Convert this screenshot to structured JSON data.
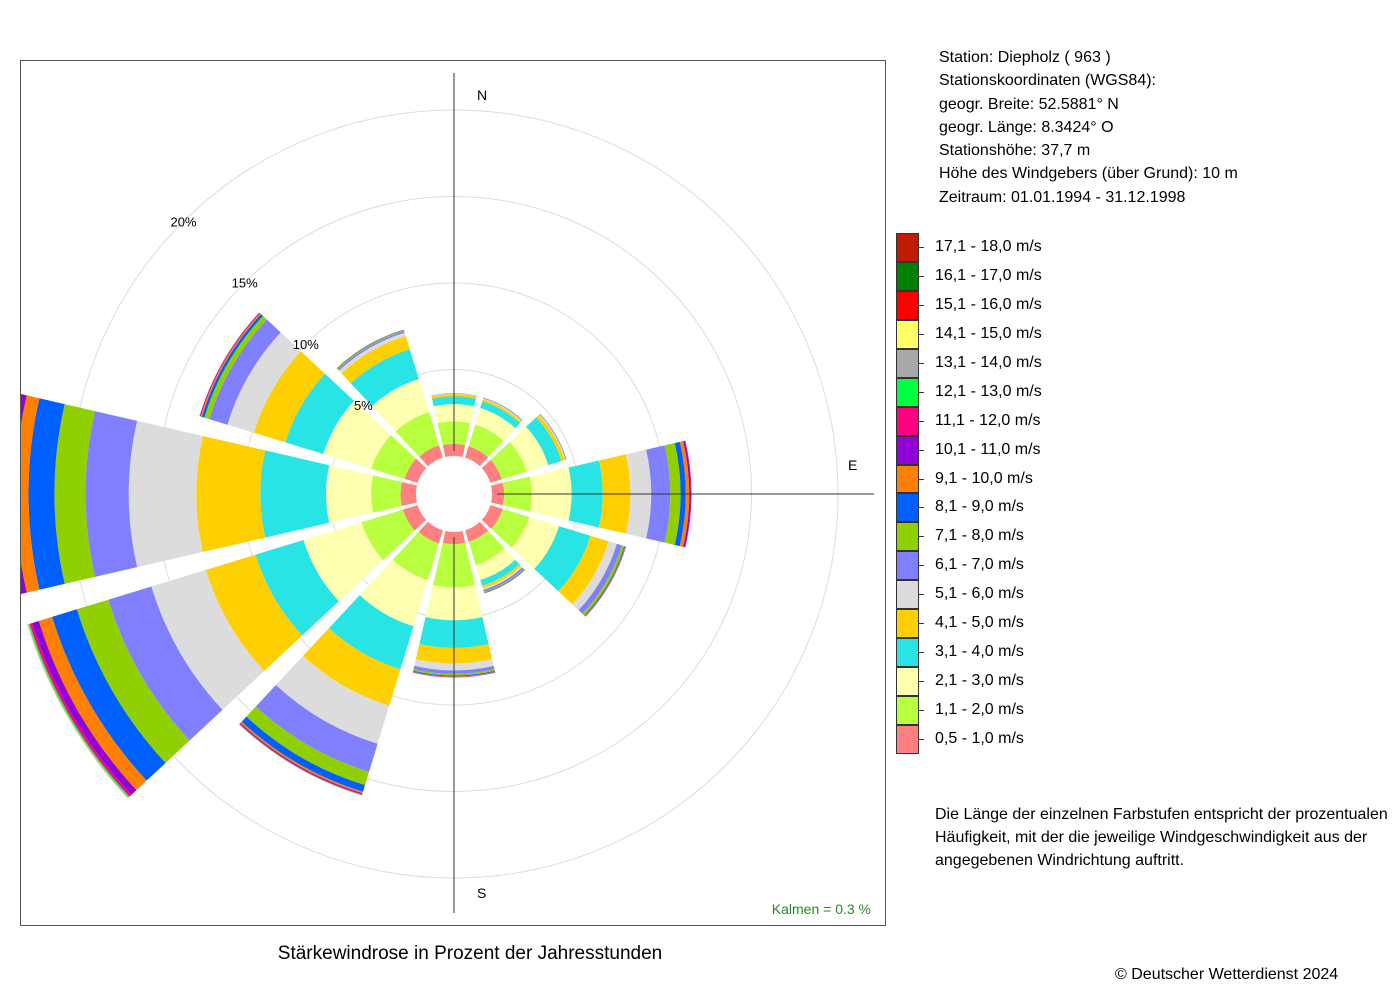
{
  "station_info": {
    "station": "Station:  Diepholz  ( 963 )",
    "coords_heading": "Stationskoordinaten (WGS84):",
    "latitude": "geogr. Breite: 52.5881° N",
    "longitude": "geogr. Länge:   8.3424° O",
    "altitude": "Stationshöhe: 37,7 m",
    "sensor_height": "Höhe des Windgebers (über Grund): 10 m",
    "period": "Zeitraum: 01.01.1994 - 31.12.1998"
  },
  "legend": [
    {
      "label": "17,1 - 18,0 m/s",
      "color": "#c01a00"
    },
    {
      "label": "16,1 - 17,0 m/s",
      "color": "#008000"
    },
    {
      "label": "15,1 - 16,0 m/s",
      "color": "#ff0000"
    },
    {
      "label": "14,1 - 15,0 m/s",
      "color": "#ffff66"
    },
    {
      "label": "13,1 - 14,0 m/s",
      "color": "#a8a8a8"
    },
    {
      "label": "12,1 - 13,0 m/s",
      "color": "#00ff40"
    },
    {
      "label": "11,1 - 12,0 m/s",
      "color": "#ff0080"
    },
    {
      "label": "10,1 - 11,0 m/s",
      "color": "#9000d8"
    },
    {
      "label": "9,1 - 10,0 m/s",
      "color": "#ff8000"
    },
    {
      "label": "8,1 - 9,0 m/s",
      "color": "#0060ff"
    },
    {
      "label": "7,1 - 8,0 m/s",
      "color": "#90d000"
    },
    {
      "label": "6,1 - 7,0 m/s",
      "color": "#8080ff"
    },
    {
      "label": "5,1 - 6,0 m/s",
      "color": "#dcdcdc"
    },
    {
      "label": "4,1 - 5,0 m/s",
      "color": "#ffd000"
    },
    {
      "label": "3,1 - 4,0 m/s",
      "color": "#28e4e4"
    },
    {
      "label": "2,1 - 3,0 m/s",
      "color": "#ffffb0"
    },
    {
      "label": "1,1 - 2,0 m/s",
      "color": "#b8ff40"
    },
    {
      "label": "0,5 - 1,0 m/s",
      "color": "#ff8080"
    }
  ],
  "note": [
    "Die Länge der einzelnen Farbstufen entspricht der prozentualen",
    "Häufigkeit, mit der die jeweilige Windgeschwindigkeit aus der",
    "angegebenen Windrichtung auftritt."
  ],
  "copyright": "© Deutscher Wetterdienst  2024",
  "chart_data": {
    "type": "wind-rose",
    "title": "Stärkewindrose in Prozent der Jahresstunden",
    "direction_labels": {
      "north": "N",
      "east": "E",
      "south": "S"
    },
    "ring_labels": [
      "5%",
      "10%",
      "15%",
      "20%"
    ],
    "rings": [
      5,
      10,
      15,
      20
    ],
    "calm_text": "Kalmen  =  0.3 %",
    "calm_color": "#228b22",
    "speed_classes": [
      "0,5 - 1,0 m/s",
      "1,1 - 2,0 m/s",
      "2,1 - 3,0 m/s",
      "3,1 - 4,0 m/s",
      "4,1 - 5,0 m/s",
      "5,1 - 6,0 m/s",
      "6,1 - 7,0 m/s",
      "7,1 - 8,0 m/s",
      "8,1 - 9,0 m/s",
      "9,1 - 10,0 m/s",
      "10,1 - 11,0 m/s",
      "11,1 - 12,0 m/s",
      "12,1 - 13,0 m/s",
      "13,1 - 14,0 m/s",
      "14,1 - 15,0 m/s",
      "15,1 - 16,0 m/s",
      "16,1 - 17,0 m/s",
      "17,1 - 18,0 m/s"
    ],
    "class_colors": [
      "#ff8080",
      "#b8ff40",
      "#ffffb0",
      "#28e4e4",
      "#ffd000",
      "#dcdcdc",
      "#8080ff",
      "#90d000",
      "#0060ff",
      "#ff8000",
      "#9000d8",
      "#ff0080",
      "#00ff40",
      "#a8a8a8",
      "#ffff66",
      "#ff0000",
      "#008000",
      "#c01a00"
    ],
    "directions": [
      {
        "dir": 0,
        "values": [
          0.7,
          1.3,
          1.0,
          0.45,
          0.13,
          0.03,
          0.02,
          0.01
        ]
      },
      {
        "dir": 30,
        "values": [
          0.7,
          1.3,
          1.0,
          0.4,
          0.12,
          0.06,
          0.04,
          0.02
        ]
      },
      {
        "dir": 60,
        "values": [
          0.7,
          1.5,
          1.3,
          0.8,
          0.2,
          0.06,
          0.04,
          0.02
        ]
      },
      {
        "dir": 90,
        "values": [
          0.7,
          1.6,
          2.3,
          1.8,
          1.6,
          1.2,
          1.1,
          0.6,
          0.3,
          0.2,
          0.1,
          0.03
        ]
      },
      {
        "dir": 120,
        "values": [
          0.75,
          1.6,
          1.8,
          1.9,
          1.1,
          0.5,
          0.3,
          0.15,
          0.05,
          0.03,
          0.02,
          0.01
        ]
      },
      {
        "dir": 150,
        "values": [
          0.7,
          1.4,
          0.9,
          0.35,
          0.15,
          0.1,
          0.1,
          0.06,
          0.03,
          0.02,
          0.01
        ]
      },
      {
        "dir": 180,
        "values": [
          0.7,
          2.5,
          1.9,
          1.6,
          0.9,
          0.4,
          0.2,
          0.1,
          0.05,
          0.03,
          0.02,
          0.01
        ]
      },
      {
        "dir": 210,
        "values": [
          0.8,
          2.2,
          2.8,
          2.6,
          2.2,
          2.3,
          1.7,
          0.8,
          0.4,
          0.1,
          0.06,
          0.03,
          0.02,
          0.02,
          0.01
        ]
      },
      {
        "dir": 240,
        "values": [
          0.9,
          2.5,
          3.5,
          2.9,
          3.0,
          3.3,
          2.6,
          1.9,
          1.5,
          0.8,
          0.4,
          0.15,
          0.08,
          0.03,
          0.02,
          0.01
        ]
      },
      {
        "dir": 270,
        "values": [
          0.9,
          1.7,
          2.6,
          3.8,
          3.7,
          3.9,
          2.5,
          1.8,
          1.5,
          0.75,
          0.5,
          0.2,
          0.1,
          0.05,
          0.02,
          0.01
        ]
      },
      {
        "dir": 300,
        "values": [
          0.8,
          2.0,
          2.9,
          2.3,
          1.9,
          1.6,
          1.1,
          0.3,
          0.15,
          0.08,
          0.04,
          0.02
        ]
      },
      {
        "dir": 330,
        "values": [
          0.75,
          2.0,
          2.0,
          1.8,
          0.8,
          0.2,
          0.1,
          0.05,
          0.03,
          0.02
        ]
      }
    ]
  }
}
